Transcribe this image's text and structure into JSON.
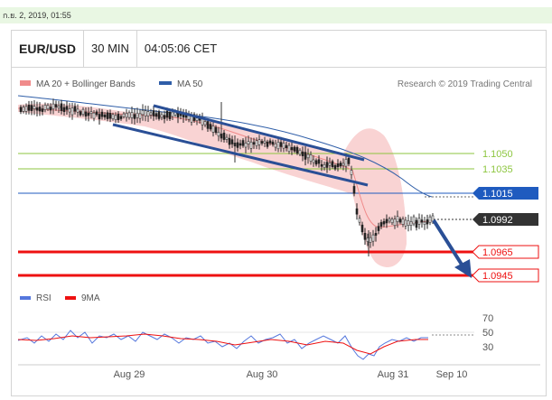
{
  "date_bar": {
    "text": "ก.ย. 2, 2019, 01:55"
  },
  "header": {
    "symbol": "EUR/USD",
    "timeframe": "30 MIN",
    "time": "04:05:06 CET"
  },
  "legend": {
    "ma20_label": "MA 20 + Bollinger Bands",
    "ma50_label": "MA 50",
    "credit": "Research © 2019 Trading Central",
    "ma20_color": "#f08b8b",
    "ma50_color": "#2f5ea8"
  },
  "levels": {
    "l1": "1.1050",
    "l2": "1.1035",
    "l3": "1.1015",
    "l4": "1.0992",
    "l5": "1.0965",
    "l6": "1.0945"
  },
  "colors": {
    "support": "#ee1111",
    "resistance_green": "#8dc63f",
    "blue_level": "#1f5bbf",
    "current": "#333333",
    "trend": "#2a4f96",
    "bollinger": "#f9d3d3"
  },
  "rsi_legend": {
    "rsi": "RSI",
    "ma9": "9MA",
    "rsi_color": "#5577dd",
    "ma9_color": "#ee1111"
  },
  "rsi_axis": [
    "70",
    "50",
    "30"
  ],
  "x_axis": [
    "Aug 29",
    "Aug 30",
    "Aug 31",
    "Sep 10"
  ],
  "chart_data": {
    "type": "candlestick",
    "title": "EUR/USD 30 MIN",
    "y_levels": [
      1.105,
      1.1035,
      1.1015,
      1.0992,
      1.0965,
      1.0945
    ],
    "current_price": 1.0992,
    "x_labels": [
      "Aug 29",
      "Aug 30",
      "Aug 31",
      "Sep 10"
    ],
    "rsi_levels": [
      70,
      50,
      30
    ]
  }
}
